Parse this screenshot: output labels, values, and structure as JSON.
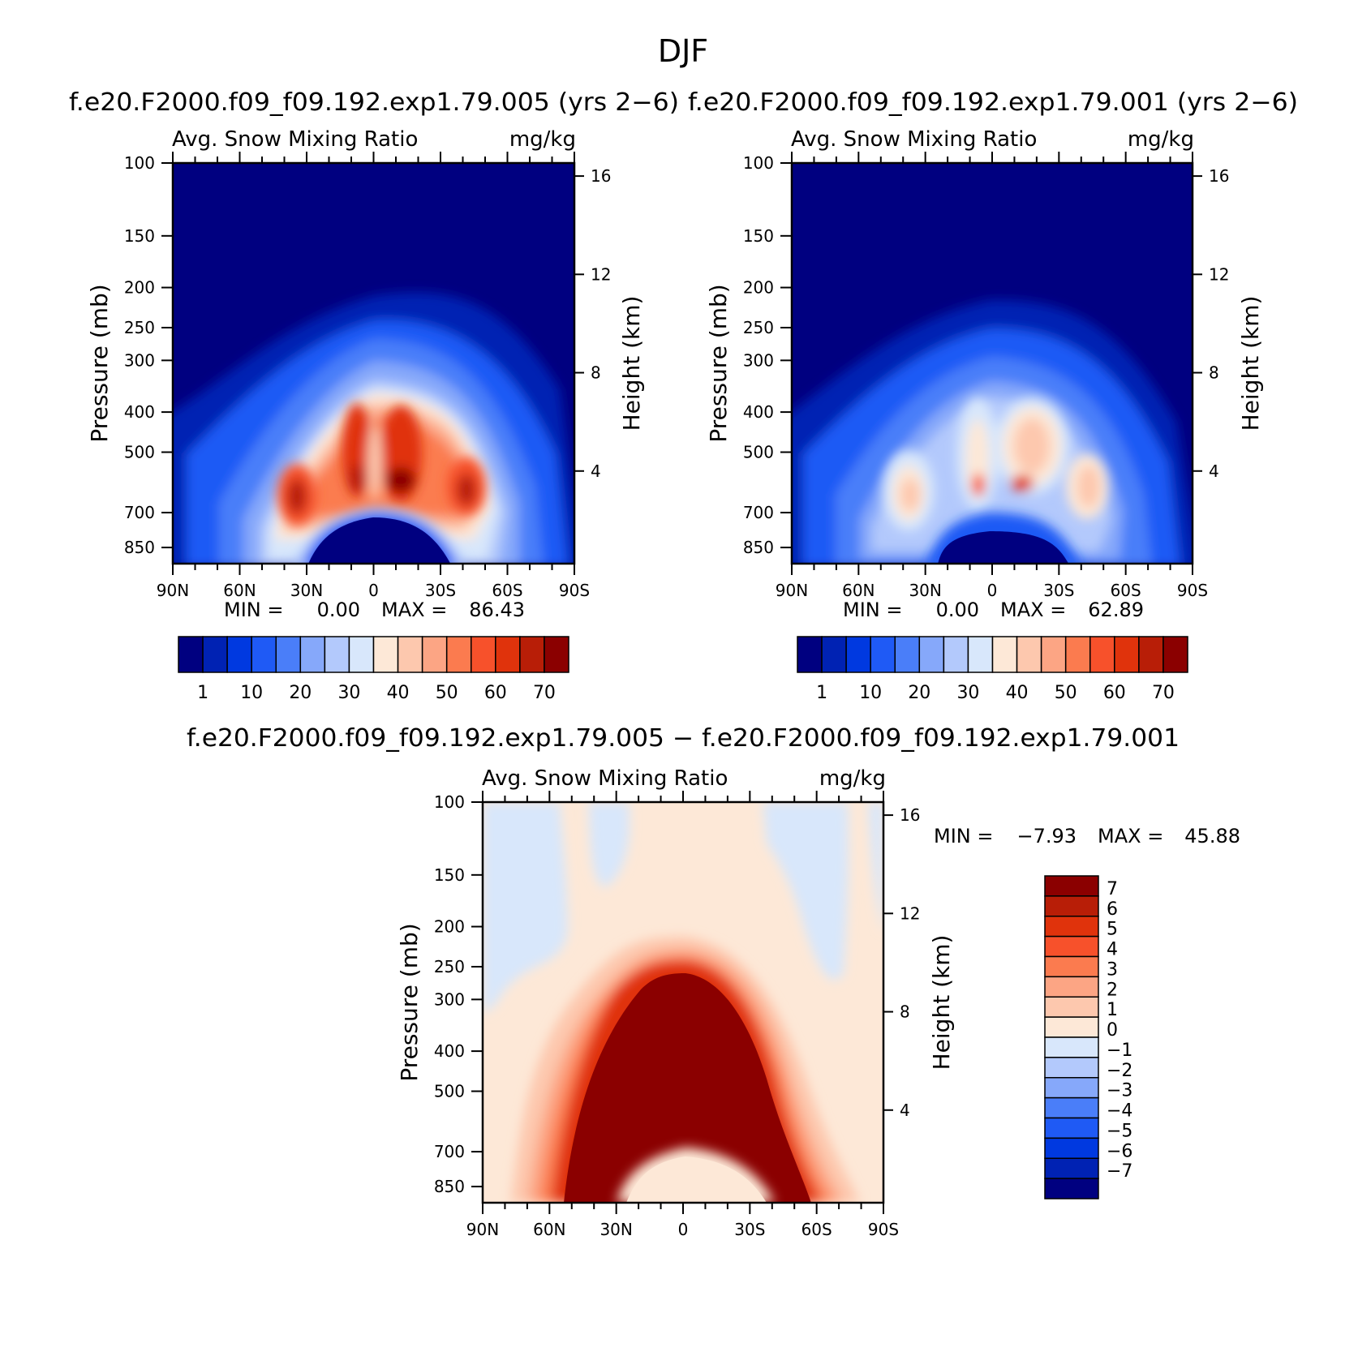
{
  "figure_title": "DJF",
  "panels": [
    {
      "id": "left",
      "case_title": "f.e20.F2000.f09_f09.192.exp1.79.005 (yrs 2−6)",
      "var_label": "Avg. Snow Mixing Ratio",
      "units": "mg/kg",
      "min_text": "MIN =",
      "min_val": "0.00",
      "max_text": "MAX =",
      "max_val": "86.43"
    },
    {
      "id": "right",
      "case_title": "f.e20.F2000.f09_f09.192.exp1.79.001 (yrs 2−6)",
      "var_label": "Avg. Snow Mixing Ratio",
      "units": "mg/kg",
      "min_text": "MIN =",
      "min_val": "0.00",
      "max_text": "MAX =",
      "max_val": "62.89"
    },
    {
      "id": "diff",
      "case_title": "f.e20.F2000.f09_f09.192.exp1.79.005 − f.e20.F2000.f09_f09.192.exp1.79.001",
      "var_label": "Avg. Snow Mixing Ratio",
      "units": "mg/kg",
      "min_text": "MIN =",
      "min_val": "−7.93",
      "max_text": "MAX =",
      "max_val": "45.88"
    }
  ],
  "axes": {
    "ylabel_left": "Pressure (mb)",
    "ylabel_right": "Height (km)",
    "pressure_ticks": [
      "100",
      "150",
      "200",
      "250",
      "300",
      "400",
      "500",
      "700",
      "850"
    ],
    "height_ticks": [
      "16",
      "12",
      "8",
      "4"
    ],
    "lat_ticks": [
      "90N",
      "60N",
      "30N",
      "0",
      "30S",
      "60S",
      "90S"
    ]
  },
  "colorbar_main": {
    "labels": [
      "1",
      "10",
      "20",
      "30",
      "40",
      "50",
      "60",
      "70"
    ],
    "colors": [
      "#000080",
      "#0022b3",
      "#0039e0",
      "#1f5af5",
      "#4a7ef9",
      "#86a8fa",
      "#b3c9fc",
      "#d8e7fb",
      "#fde8d7",
      "#fdc8ae",
      "#fca584",
      "#fb7b4f",
      "#f7512b",
      "#e0330c",
      "#b81e07",
      "#8b0000"
    ]
  },
  "colorbar_diff": {
    "labels": [
      "7",
      "6",
      "5",
      "4",
      "3",
      "2",
      "1",
      "0",
      "−1",
      "−2",
      "−3",
      "−4",
      "−5",
      "−6",
      "−7"
    ],
    "colors": [
      "#8b0000",
      "#b81e07",
      "#e0330c",
      "#f7512b",
      "#fb7b4f",
      "#fca584",
      "#fdc8ae",
      "#fde8d7",
      "#d8e7fb",
      "#b3c9fc",
      "#86a8fa",
      "#4a7ef9",
      "#1f5af5",
      "#0039e0",
      "#0022b3",
      "#000080"
    ]
  },
  "chart_data": [
    {
      "type": "heatmap",
      "title": "f.e20.F2000.f09_f09.192.exp1.79.005 (yrs 2−6)",
      "variable": "Avg. Snow Mixing Ratio",
      "units": "mg/kg",
      "xlabel": "",
      "ylabel": "Pressure (mb)",
      "ylabel_right": "Height (km)",
      "x_ticks": [
        "90N",
        "60N",
        "30N",
        "0",
        "30S",
        "60S",
        "90S"
      ],
      "y_ticks": [
        100,
        150,
        200,
        250,
        300,
        400,
        500,
        700,
        850
      ],
      "contour_levels": [
        1,
        5,
        10,
        15,
        20,
        25,
        30,
        35,
        40,
        45,
        50,
        55,
        60,
        65,
        70
      ],
      "min": 0.0,
      "max": 86.43
    },
    {
      "type": "heatmap",
      "title": "f.e20.F2000.f09_f09.192.exp1.79.001 (yrs 2−6)",
      "variable": "Avg. Snow Mixing Ratio",
      "units": "mg/kg",
      "xlabel": "",
      "ylabel": "Pressure (mb)",
      "ylabel_right": "Height (km)",
      "x_ticks": [
        "90N",
        "60N",
        "30N",
        "0",
        "30S",
        "60S",
        "90S"
      ],
      "y_ticks": [
        100,
        150,
        200,
        250,
        300,
        400,
        500,
        700,
        850
      ],
      "contour_levels": [
        1,
        5,
        10,
        15,
        20,
        25,
        30,
        35,
        40,
        45,
        50,
        55,
        60,
        65,
        70
      ],
      "min": 0.0,
      "max": 62.89
    },
    {
      "type": "heatmap",
      "title": "f.e20.F2000.f09_f09.192.exp1.79.005 − f.e20.F2000.f09_f09.192.exp1.79.001",
      "variable": "Avg. Snow Mixing Ratio",
      "units": "mg/kg",
      "xlabel": "",
      "ylabel": "Pressure (mb)",
      "ylabel_right": "Height (km)",
      "x_ticks": [
        "90N",
        "60N",
        "30N",
        "0",
        "30S",
        "60S",
        "90S"
      ],
      "y_ticks": [
        100,
        150,
        200,
        250,
        300,
        400,
        500,
        700,
        850
      ],
      "contour_levels": [
        -7,
        -6,
        -5,
        -4,
        -3,
        -2,
        -1,
        0,
        1,
        2,
        3,
        4,
        5,
        6,
        7
      ],
      "min": -7.93,
      "max": 45.88
    }
  ]
}
